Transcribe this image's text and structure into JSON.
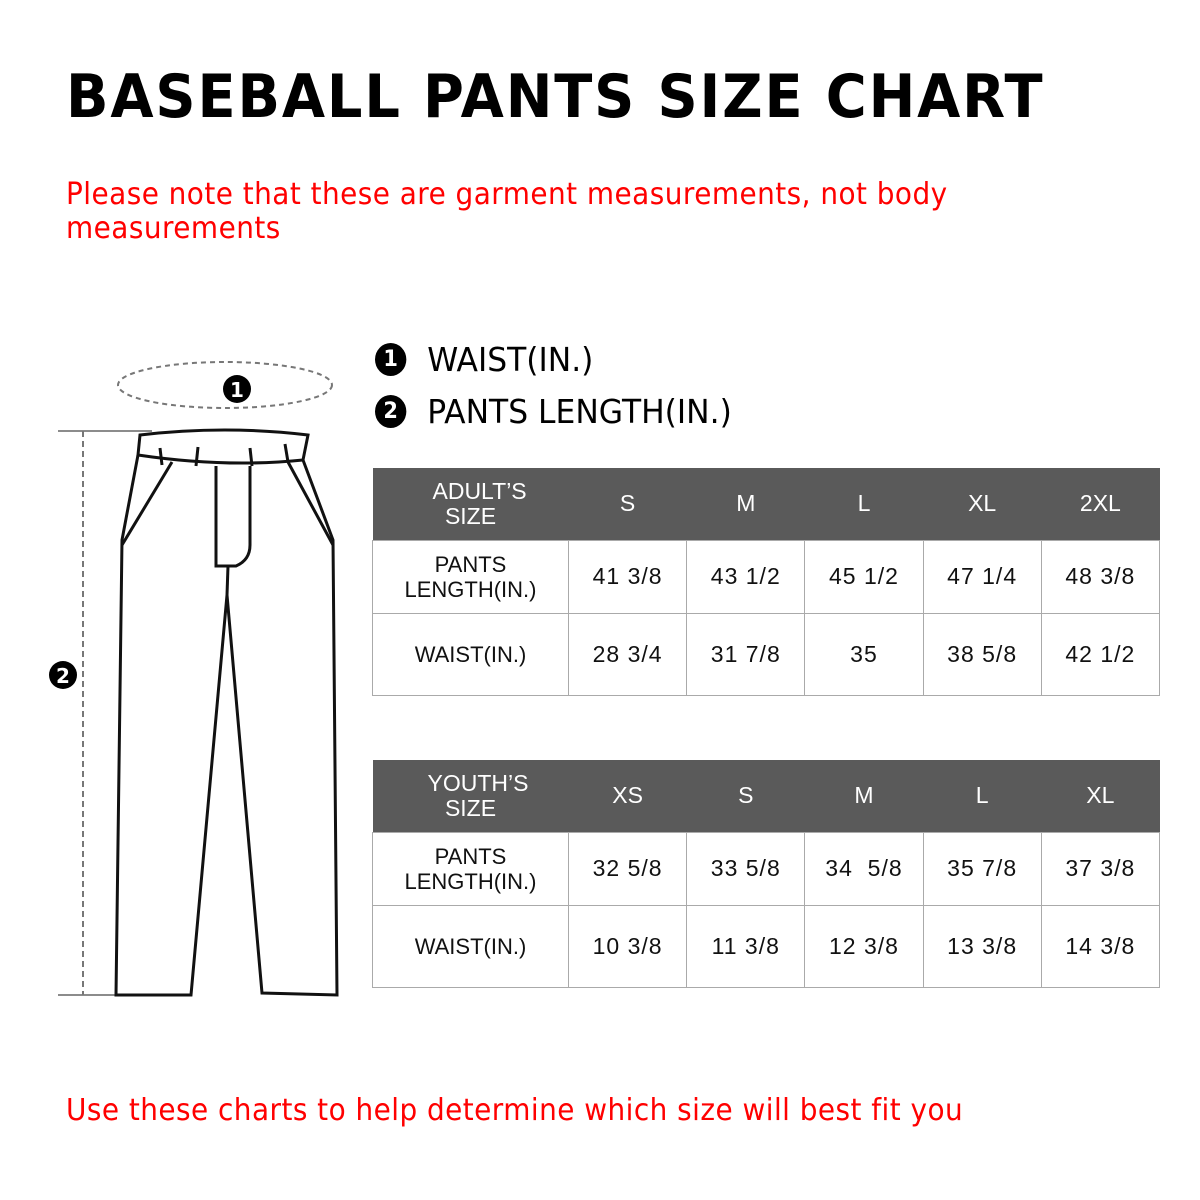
{
  "title": "BASEBALL PANTS SIZE CHART",
  "note": "Please note that these are garment measurements, not body measurements",
  "legend": [
    {
      "num": "1",
      "label": "WAIST(IN.)"
    },
    {
      "num": "2",
      "label": "PANTS LENGTH(IN.)"
    }
  ],
  "adult": {
    "header": "ADULT’S SIZE",
    "sizes": [
      "S",
      "M",
      "L",
      "XL",
      "2XL"
    ],
    "rows": [
      {
        "label": "PANTS LENGTH(IN.)",
        "values": [
          "41 3/8",
          "43 1/2",
          "45 1/2",
          "47 1/4",
          "48 3/8"
        ]
      },
      {
        "label": "WAIST(IN.)",
        "values": [
          "28 3/4",
          "31 7/8",
          "35",
          "38 5/8",
          "42 1/2"
        ]
      }
    ]
  },
  "youth": {
    "header": "YOUTH’S SIZE",
    "sizes": [
      "XS",
      "S",
      "M",
      "L",
      "XL"
    ],
    "rows": [
      {
        "label": "PANTS LENGTH(IN.)",
        "values": [
          "32 5/8",
          "33 5/8",
          "34  5/8",
          "35 7/8",
          "37 3/8"
        ]
      },
      {
        "label": "WAIST(IN.)",
        "values": [
          "10 3/8",
          "11 3/8",
          "12 3/8",
          "13 3/8",
          "14 3/8"
        ]
      }
    ]
  },
  "footer": "Use these charts to help determine which size will best fit you",
  "colors": {
    "header_bg": "#5a5a5a",
    "note": "#ff0000"
  }
}
